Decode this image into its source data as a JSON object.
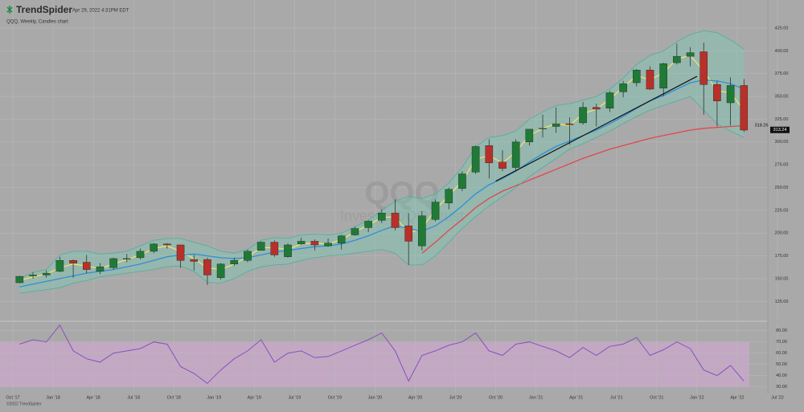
{
  "header": {
    "logo": "TrendSpider",
    "timestamp": "Apr 29, 2022 4:31PM EDT"
  },
  "footer": "©2022 TrendSpider",
  "chart_data": [
    {
      "type": "candlestick",
      "subtitle": "QQQ, Weekly, Candles chart",
      "watermark_symbol": "QQQ",
      "watermark_name": "Invesco QQQ Trust",
      "up_color": "#1f7a36",
      "down_color": "#b8302a",
      "grid": true,
      "ylim": [
        105,
        447
      ],
      "yticks": [
        {
          "value": 125,
          "label": "125.00"
        },
        {
          "value": 150,
          "label": "150.00"
        },
        {
          "value": 175,
          "label": "175.00"
        },
        {
          "value": 200,
          "label": "200.00"
        },
        {
          "value": 225,
          "label": "225.00"
        },
        {
          "value": 250,
          "label": "250.00"
        },
        {
          "value": 275,
          "label": "275.00"
        },
        {
          "value": 300,
          "label": "300.00"
        },
        {
          "value": 325,
          "label": "325.00"
        },
        {
          "value": 350,
          "label": "350.00"
        },
        {
          "value": 375,
          "label": "375.00"
        },
        {
          "value": 400,
          "label": "400.00"
        },
        {
          "value": 425,
          "label": "425.00"
        }
      ],
      "x": [
        "2017-10",
        "2017-11",
        "2017-12",
        "2018-01",
        "2018-02",
        "2018-03",
        "2018-04",
        "2018-05",
        "2018-06",
        "2018-07",
        "2018-08",
        "2018-09",
        "2018-10",
        "2018-11",
        "2018-12",
        "2019-01",
        "2019-02",
        "2019-03",
        "2019-04",
        "2019-05",
        "2019-06",
        "2019-07",
        "2019-08",
        "2019-09",
        "2019-10",
        "2019-11",
        "2019-12",
        "2020-01",
        "2020-02",
        "2020-03",
        "2020-04",
        "2020-05",
        "2020-06",
        "2020-07",
        "2020-08",
        "2020-09",
        "2020-10",
        "2020-11",
        "2020-12",
        "2021-01",
        "2021-02",
        "2021-03",
        "2021-04",
        "2021-05",
        "2021-06",
        "2021-07",
        "2021-08",
        "2021-09",
        "2021-10",
        "2021-11",
        "2021-12",
        "2022-01",
        "2022-02",
        "2022-03",
        "2022-04"
      ],
      "open": [
        145.5,
        153,
        154,
        158,
        170,
        168,
        158,
        162,
        172,
        173,
        180,
        188,
        187,
        171,
        171,
        151,
        166,
        170,
        181,
        190,
        174,
        188,
        191,
        186,
        189,
        198,
        206,
        214,
        222,
        208,
        186,
        215,
        233,
        249,
        267,
        296,
        278,
        272,
        300,
        315,
        317,
        320,
        321,
        338,
        337,
        355,
        365,
        379,
        359,
        387,
        394,
        399,
        363,
        343,
        362
      ],
      "high": [
        153,
        157,
        159,
        174,
        171,
        176,
        167,
        173,
        177,
        183,
        189,
        189,
        187,
        176,
        173,
        167,
        173,
        182,
        191,
        192,
        189,
        195,
        193,
        194,
        198,
        207,
        214,
        226,
        237,
        222,
        224,
        237,
        250,
        268,
        296,
        303,
        291,
        303,
        314,
        330,
        338,
        327,
        344,
        342,
        356,
        367,
        380,
        383,
        387,
        408,
        404,
        409,
        367,
        371,
        369
      ],
      "low": [
        145,
        150,
        151,
        157,
        151,
        156,
        155,
        160,
        168,
        171,
        178,
        183,
        162,
        159,
        143,
        149,
        164,
        168,
        181,
        174,
        173,
        187,
        181,
        185,
        182,
        197,
        201,
        211,
        203,
        165,
        181,
        213,
        226,
        246,
        265,
        260,
        268,
        268,
        296,
        305,
        310,
        297,
        319,
        317,
        333,
        349,
        361,
        357,
        350,
        385,
        383,
        330,
        317,
        318,
        311
      ],
      "close": [
        152.5,
        154,
        156,
        170,
        167,
        160,
        163,
        172,
        172,
        180,
        188,
        187,
        170,
        169,
        154,
        166,
        170,
        180,
        190,
        176,
        187,
        191,
        187,
        189,
        197,
        205,
        213,
        222,
        206,
        191,
        219,
        234,
        248,
        265,
        295,
        277,
        271,
        300,
        314,
        315,
        320,
        319,
        338,
        336,
        354,
        364,
        379,
        358,
        386,
        394,
        398,
        363,
        345,
        362,
        313
      ],
      "overlays": [
        {
          "color": "#f0e26a",
          "values": [
            148,
            152,
            155,
            162,
            166,
            164,
            161,
            166,
            171,
            176,
            183,
            186,
            180,
            172,
            162,
            160,
            166,
            174,
            184,
            184,
            182,
            188,
            189,
            188,
            193,
            201,
            209,
            217,
            218,
            200,
            205,
            226,
            241,
            257,
            281,
            285,
            277,
            289,
            307,
            315,
            320,
            318,
            331,
            336,
            347,
            360,
            373,
            368,
            376,
            391,
            395,
            378,
            356,
            354,
            335
          ]
        },
        {
          "color": "#2f8fd8",
          "values": [
            141,
            144,
            147,
            150,
            153,
            156,
            158,
            160,
            163,
            166,
            170,
            174,
            176,
            177,
            175,
            173,
            172,
            173,
            176,
            179,
            181,
            183,
            185,
            186,
            188,
            192,
            197,
            203,
            208,
            205,
            202,
            208,
            218,
            230,
            243,
            253,
            260,
            268,
            278,
            287,
            295,
            301,
            307,
            313,
            320,
            328,
            337,
            345,
            351,
            358,
            365,
            368,
            367,
            364,
            358
          ]
        },
        {
          "color": "#e0474c",
          "values": [
            null,
            null,
            null,
            null,
            null,
            null,
            null,
            null,
            null,
            null,
            null,
            null,
            null,
            null,
            null,
            null,
            null,
            null,
            null,
            null,
            null,
            null,
            null,
            null,
            null,
            null,
            null,
            null,
            null,
            null,
            178,
            190,
            203,
            215,
            228,
            238,
            246,
            252,
            258,
            264,
            270,
            276,
            282,
            287,
            292,
            296,
            300,
            304,
            307,
            310,
            313,
            315,
            316,
            317,
            318
          ]
        },
        {
          "color": "#4fae9c",
          "values": [
            150,
            157,
            160,
            176,
            180,
            180,
            177,
            178,
            180,
            186,
            192,
            194,
            194,
            190,
            186,
            180,
            178,
            182,
            192,
            195,
            194,
            198,
            199,
            198,
            200,
            207,
            214,
            225,
            235,
            240,
            238,
            243,
            255,
            272,
            295,
            305,
            307,
            312,
            325,
            333,
            340,
            342,
            346,
            350,
            358,
            370,
            385,
            395,
            400,
            410,
            418,
            422,
            420,
            412,
            402
          ]
        },
        {
          "color": "#4fae9c",
          "values": [
            134,
            136,
            138,
            140,
            145,
            148,
            152,
            154,
            156,
            158,
            160,
            163,
            164,
            158,
            146,
            145,
            150,
            158,
            163,
            165,
            166,
            170,
            173,
            175,
            176,
            178,
            180,
            182,
            178,
            165,
            165,
            175,
            190,
            205,
            218,
            230,
            240,
            250,
            262,
            272,
            282,
            292,
            298,
            305,
            312,
            320,
            328,
            335,
            340,
            345,
            350,
            335,
            320,
            312,
            305
          ]
        }
      ],
      "trend_line": {
        "color": "#111111",
        "x": [
          "2020-10",
          "2022-01"
        ],
        "values": [
          257,
          372
        ]
      },
      "price_labels": [
        318.26,
        313.24
      ]
    },
    {
      "type": "line",
      "color": "#8a4fc0",
      "band": [
        30,
        70
      ],
      "band_color": "#d8a8d8",
      "grid": true,
      "ylim": [
        24,
        87
      ],
      "yticks": [
        {
          "value": 30,
          "label": "30.00"
        },
        {
          "value": 40,
          "label": "40.00"
        },
        {
          "value": 50,
          "label": "50.00"
        },
        {
          "value": 60,
          "label": "60.00"
        },
        {
          "value": 70,
          "label": "70.00"
        },
        {
          "value": 80,
          "label": "80.00"
        }
      ],
      "xlim": [
        "2017-10",
        "2022-07"
      ],
      "xticks": [
        {
          "value": "2017-10",
          "label": "Oct '17"
        },
        {
          "value": "2018-01",
          "label": "Jan '18"
        },
        {
          "value": "2018-04",
          "label": "Apr '18"
        },
        {
          "value": "2018-07",
          "label": "Jul '18"
        },
        {
          "value": "2018-10",
          "label": "Oct '18"
        },
        {
          "value": "2019-01",
          "label": "Jan '19"
        },
        {
          "value": "2019-04",
          "label": "Apr '19"
        },
        {
          "value": "2019-07",
          "label": "Jul '19"
        },
        {
          "value": "2019-10",
          "label": "Oct '19"
        },
        {
          "value": "2020-01",
          "label": "Jan '20"
        },
        {
          "value": "2020-04",
          "label": "Apr '20"
        },
        {
          "value": "2020-07",
          "label": "Jul '20"
        },
        {
          "value": "2020-10",
          "label": "Oct '20"
        },
        {
          "value": "2021-01",
          "label": "Jan '21"
        },
        {
          "value": "2021-04",
          "label": "Apr '21"
        },
        {
          "value": "2021-07",
          "label": "Jul '21"
        },
        {
          "value": "2021-10",
          "label": "Oct '21"
        },
        {
          "value": "2022-01",
          "label": "Jan '22"
        },
        {
          "value": "2022-04",
          "label": "Apr '22"
        },
        {
          "value": "2022-07",
          "label": "Jul '22"
        }
      ],
      "x": [
        "2017-10",
        "2017-11",
        "2017-12",
        "2018-01",
        "2018-02",
        "2018-03",
        "2018-04",
        "2018-05",
        "2018-06",
        "2018-07",
        "2018-08",
        "2018-09",
        "2018-10",
        "2018-11",
        "2018-12",
        "2019-01",
        "2019-02",
        "2019-03",
        "2019-04",
        "2019-05",
        "2019-06",
        "2019-07",
        "2019-08",
        "2019-09",
        "2019-10",
        "2019-11",
        "2019-12",
        "2020-01",
        "2020-02",
        "2020-03",
        "2020-04",
        "2020-05",
        "2020-06",
        "2020-07",
        "2020-08",
        "2020-09",
        "2020-10",
        "2020-11",
        "2020-12",
        "2021-01",
        "2021-02",
        "2021-03",
        "2021-04",
        "2021-05",
        "2021-06",
        "2021-07",
        "2021-08",
        "2021-09",
        "2021-10",
        "2021-11",
        "2021-12",
        "2022-01",
        "2022-02",
        "2022-03",
        "2022-04"
      ],
      "values": [
        68,
        72,
        70,
        85,
        62,
        55,
        52,
        60,
        62,
        64,
        70,
        68,
        48,
        42,
        33,
        45,
        55,
        62,
        72,
        52,
        60,
        62,
        56,
        57,
        62,
        67,
        72,
        78,
        62,
        35,
        58,
        62,
        67,
        70,
        78,
        62,
        58,
        68,
        70,
        66,
        62,
        56,
        65,
        58,
        66,
        68,
        74,
        58,
        63,
        70,
        64,
        45,
        40,
        49,
        35
      ]
    }
  ]
}
